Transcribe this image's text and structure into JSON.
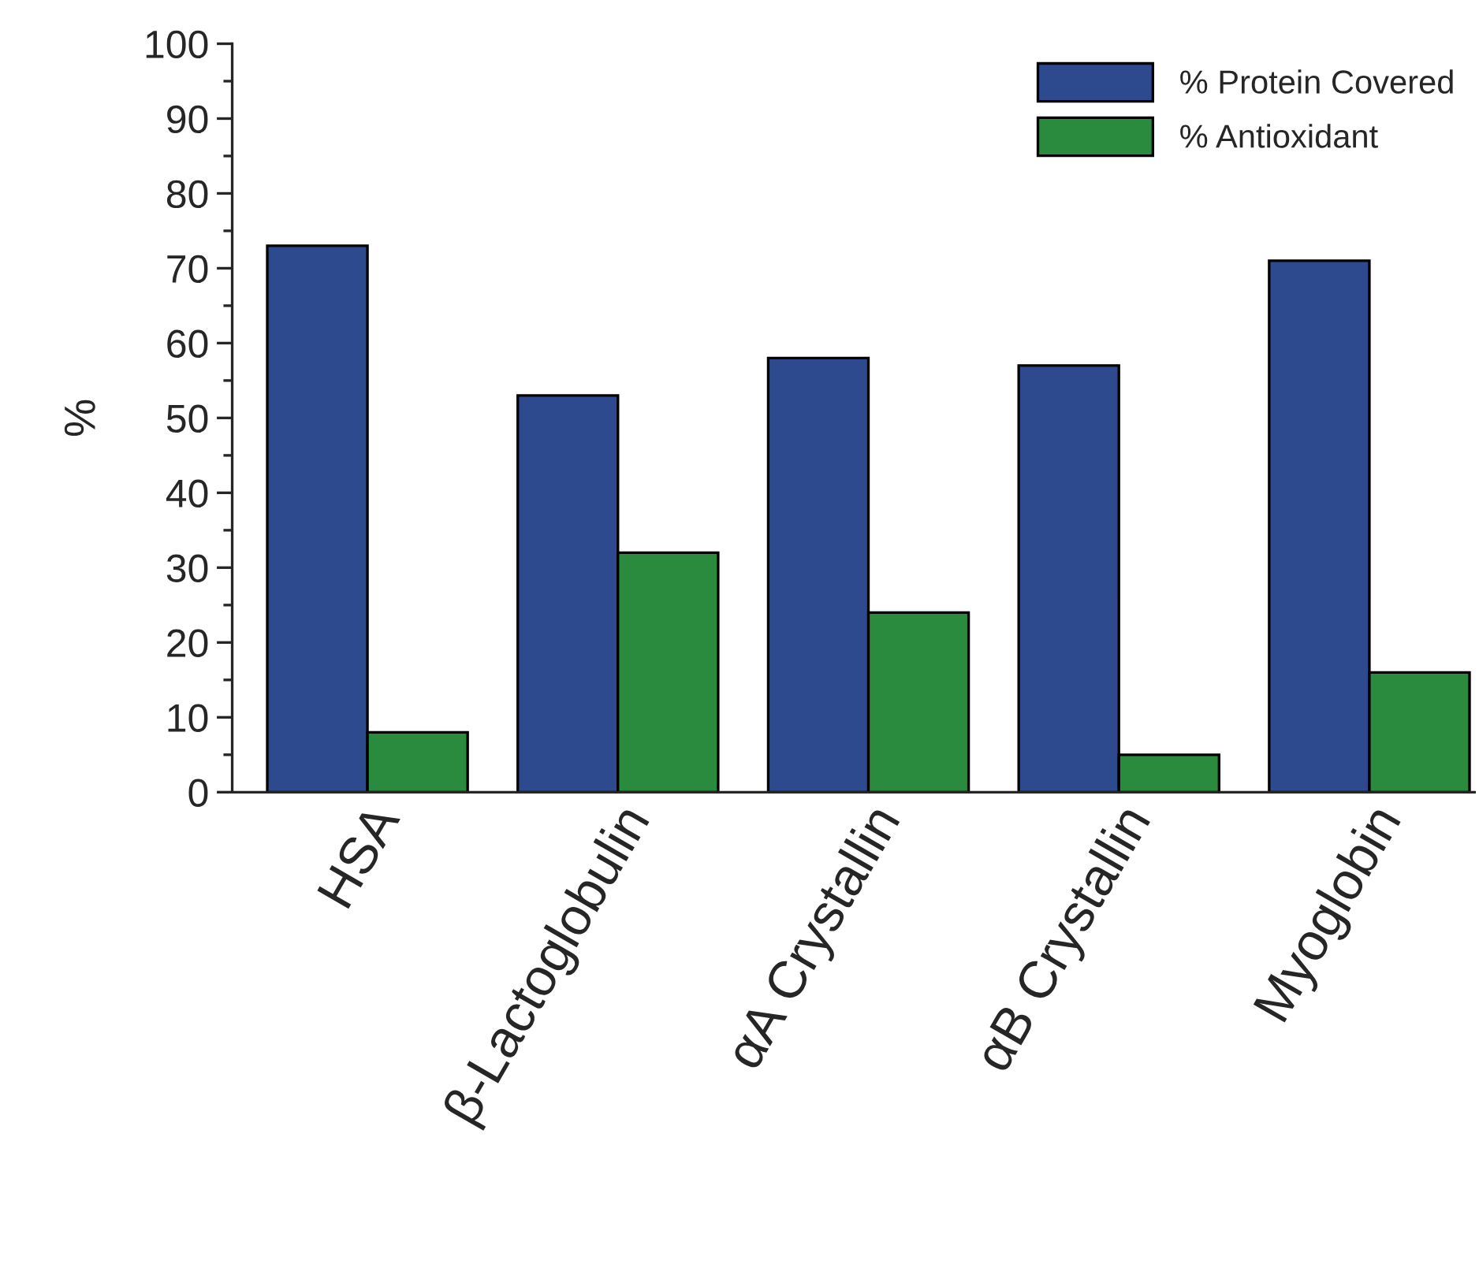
{
  "chart_data": {
    "type": "bar",
    "ylabel": "%",
    "categories": [
      "HSA",
      "β-Lactoglobulin",
      "αA Crystallin",
      "αB Crystallin",
      "Myoglobin"
    ],
    "series": [
      {
        "name": "% Protein Covered",
        "color": "#2e4a8e",
        "values": [
          73,
          53,
          58,
          57,
          71
        ]
      },
      {
        "name": "% Antioxidant",
        "color": "#2a8a3e",
        "values": [
          8,
          32,
          24,
          5,
          16
        ]
      }
    ],
    "ylim": [
      0,
      100
    ],
    "yticks": [
      0,
      10,
      20,
      30,
      40,
      50,
      60,
      70,
      80,
      90,
      100
    ],
    "grid": false,
    "legend": "top right"
  }
}
